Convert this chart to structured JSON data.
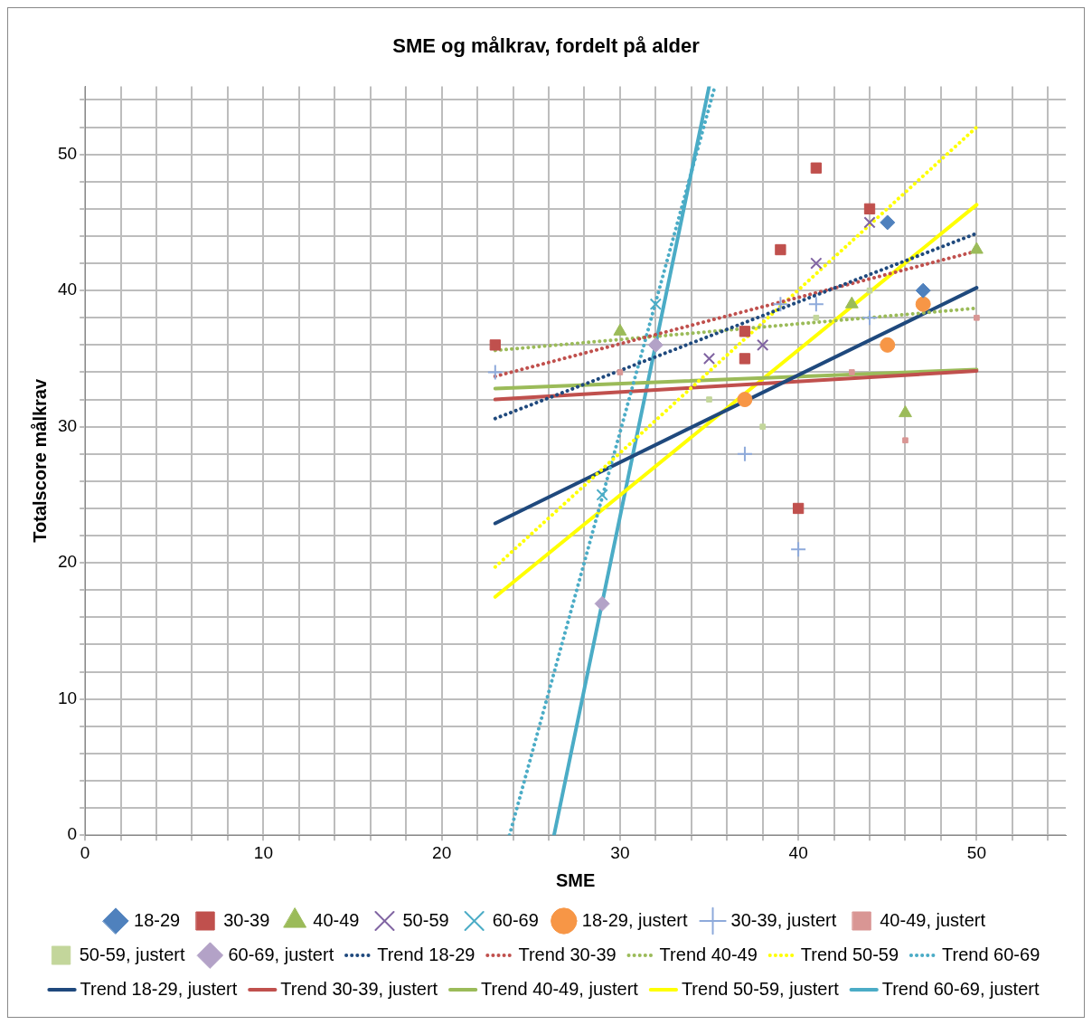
{
  "chart_data": {
    "type": "scatter",
    "title": "SME og målkrav, fordelt på alder",
    "xlabel": "SME",
    "ylabel": "Totalscore målkrav",
    "xlim": [
      0,
      55
    ],
    "ylim": [
      0,
      55
    ],
    "xticks": [
      0,
      {
        "value": 2,
        "label": null
      },
      {
        "value": 4,
        "label": null
      },
      {
        "value": 6,
        "label": null
      },
      {
        "value": 8,
        "label": null
      },
      10,
      {
        "value": 12,
        "label": null
      },
      {
        "value": 14,
        "label": null
      },
      {
        "value": 16,
        "label": null
      },
      {
        "value": 18,
        "label": null
      },
      20,
      {
        "value": 22,
        "label": null
      },
      {
        "value": 24,
        "label": null
      },
      {
        "value": 26,
        "label": null
      },
      {
        "value": 28,
        "label": null
      },
      30,
      {
        "value": 32,
        "label": null
      },
      {
        "value": 34,
        "label": null
      },
      {
        "value": 36,
        "label": null
      },
      {
        "value": 38,
        "label": null
      },
      40,
      {
        "value": 42,
        "label": null
      },
      {
        "value": 44,
        "label": null
      },
      {
        "value": 46,
        "label": null
      },
      {
        "value": 48,
        "label": null
      },
      50,
      {
        "value": 52,
        "label": null
      },
      {
        "value": 54,
        "label": null
      }
    ],
    "yticks": [
      0,
      {
        "value": 2,
        "label": null
      },
      {
        "value": 4,
        "label": null
      },
      {
        "value": 6,
        "label": null
      },
      {
        "value": 8,
        "label": null
      },
      10,
      {
        "value": 12,
        "label": null
      },
      {
        "value": 14,
        "label": null
      },
      {
        "value": 16,
        "label": null
      },
      {
        "value": 18,
        "label": null
      },
      20,
      {
        "value": 22,
        "label": null
      },
      {
        "value": 24,
        "label": null
      },
      {
        "value": 26,
        "label": null
      },
      {
        "value": 28,
        "label": null
      },
      30,
      {
        "value": 32,
        "label": null
      },
      {
        "value": 34,
        "label": null
      },
      {
        "value": 36,
        "label": null
      },
      {
        "value": 38,
        "label": null
      },
      40,
      {
        "value": 42,
        "label": null
      },
      {
        "value": 44,
        "label": null
      },
      {
        "value": 46,
        "label": null
      },
      {
        "value": 48,
        "label": null
      },
      50,
      {
        "value": 52,
        "label": null
      },
      {
        "value": 54,
        "label": null
      }
    ],
    "grid": true,
    "legend": "bottom",
    "series": [
      {
        "name": "18-29",
        "marker": "diamond",
        "color": "#4f81bd",
        "x": [
          45,
          47
        ],
        "values": [
          45,
          40
        ]
      },
      {
        "name": "30-39",
        "marker": "square",
        "color": "#c0504d",
        "x": [
          23,
          37,
          37,
          39,
          40,
          41,
          44
        ],
        "values": [
          36,
          37,
          35,
          43,
          24,
          49,
          46
        ]
      },
      {
        "name": "40-49",
        "marker": "triangle",
        "color": "#9bbb59",
        "x": [
          30,
          43,
          46,
          50
        ],
        "values": [
          37,
          39,
          31,
          43
        ]
      },
      {
        "name": "50-59",
        "marker": "cross",
        "color": "#8064a2",
        "x": [
          35,
          38,
          41,
          44
        ],
        "values": [
          35,
          36,
          42,
          45
        ]
      },
      {
        "name": "60-69",
        "marker": "cross",
        "color": "#4bacc6",
        "x": [
          29,
          32
        ],
        "values": [
          25,
          39
        ]
      },
      {
        "name": "18-29, justert",
        "marker": "circle",
        "color": "#f79646",
        "x": [
          37,
          45,
          47
        ],
        "values": [
          32,
          36,
          39
        ]
      },
      {
        "name": "30-39, justert",
        "marker": "plus",
        "color": "#8eaadb",
        "x": [
          23,
          37,
          39,
          40,
          41,
          44
        ],
        "values": [
          34,
          28,
          39,
          21,
          39,
          38
        ]
      },
      {
        "name": "40-49, justert",
        "marker": "square",
        "color": "#d99694",
        "x": [
          30,
          43,
          46,
          50
        ],
        "values": [
          34,
          34,
          29,
          38
        ]
      },
      {
        "name": "50-59, justert",
        "marker": "square",
        "color": "#c3d69b",
        "x": [
          35,
          38,
          41,
          44
        ],
        "values": [
          32,
          30,
          38,
          40
        ]
      },
      {
        "name": "60-69, justert",
        "marker": "diamond",
        "color": "#b3a2c7",
        "x": [
          29,
          32
        ],
        "values": [
          17,
          36
        ]
      },
      {
        "name": "Trend 18-29",
        "type": "line",
        "line_style": "dotted",
        "color": "#1f497d",
        "x": [
          23,
          50
        ],
        "values": [
          30.6,
          44.2
        ]
      },
      {
        "name": "Trend 30-39",
        "type": "line",
        "line_style": "dotted",
        "color": "#c0504d",
        "x": [
          23,
          50
        ],
        "values": [
          33.7,
          42.9
        ]
      },
      {
        "name": "Trend 40-49",
        "type": "line",
        "line_style": "dotted",
        "color": "#9bbb59",
        "x": [
          23,
          50
        ],
        "values": [
          35.6,
          38.7
        ]
      },
      {
        "name": "Trend 50-59",
        "type": "line",
        "line_style": "dotted",
        "color": "#ffff00",
        "x": [
          23,
          50
        ],
        "values": [
          19.7,
          52
        ]
      },
      {
        "name": "Trend 60-69",
        "type": "line",
        "line_style": "dotted",
        "color": "#4bacc6",
        "x": [
          23.8,
          35.3
        ],
        "values": [
          0,
          54.9
        ]
      },
      {
        "name": "Trend 18-29, justert",
        "type": "line",
        "line_style": "solid",
        "color": "#1f497d",
        "x": [
          23,
          50
        ],
        "values": [
          22.9,
          40.2
        ]
      },
      {
        "name": "Trend 30-39, justert",
        "type": "line",
        "line_style": "solid",
        "color": "#c0504d",
        "x": [
          23,
          50
        ],
        "values": [
          32,
          34.1
        ]
      },
      {
        "name": "Trend 40-49, justert",
        "type": "line",
        "line_style": "solid",
        "color": "#9bbb59",
        "x": [
          23,
          50
        ],
        "values": [
          32.8,
          34.2
        ]
      },
      {
        "name": "Trend 50-59, justert",
        "type": "line",
        "line_style": "solid",
        "color": "#ffff00",
        "x": [
          23,
          50
        ],
        "values": [
          17.5,
          46.3
        ]
      },
      {
        "name": "Trend 60-69, justert",
        "type": "line",
        "line_style": "solid",
        "color": "#4bacc6",
        "x": [
          26.3,
          35
        ],
        "values": [
          0,
          55
        ]
      }
    ]
  }
}
